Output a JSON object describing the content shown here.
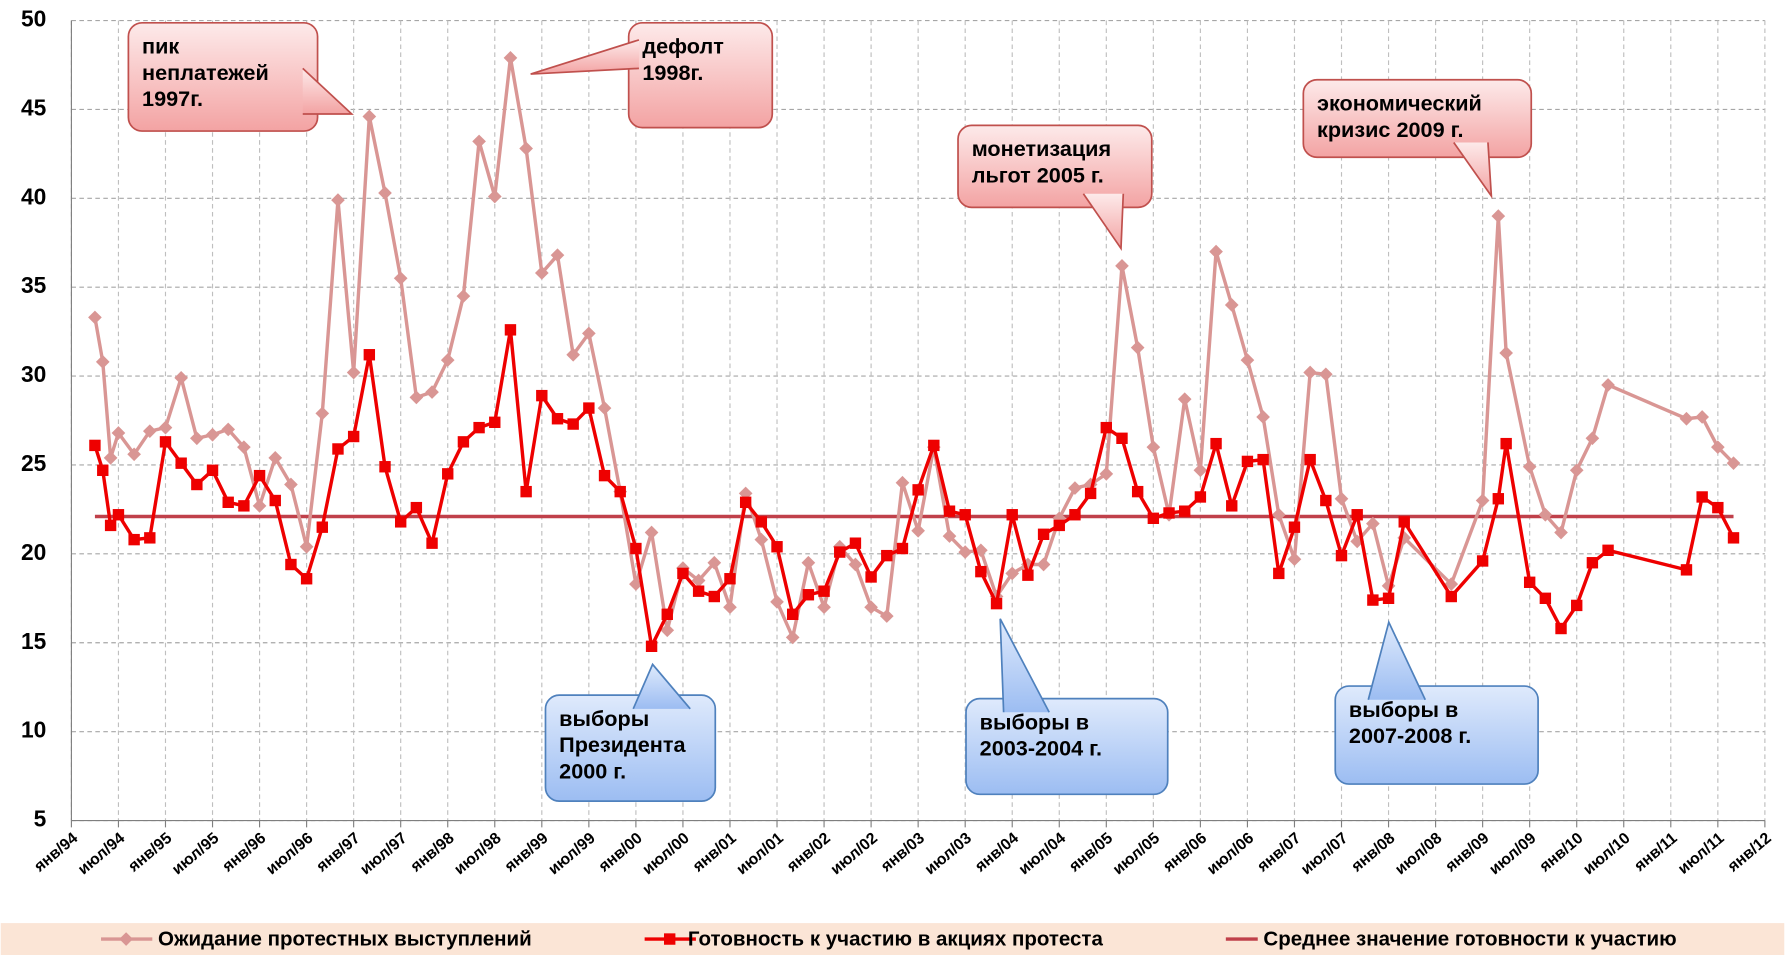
{
  "chart_data": {
    "type": "line",
    "xlim": [
      "1994-01",
      "2012-01"
    ],
    "ylim": [
      5,
      50
    ],
    "yticks": [
      5,
      10,
      15,
      20,
      25,
      30,
      35,
      40,
      45,
      50
    ],
    "xticks": [
      {
        "value": "1994-01",
        "label": "янв/94"
      },
      {
        "value": "1994-07",
        "label": "июл/94"
      },
      {
        "value": "1995-01",
        "label": "янв/95"
      },
      {
        "value": "1995-07",
        "label": "июл/95"
      },
      {
        "value": "1996-01",
        "label": "янв/96"
      },
      {
        "value": "1996-07",
        "label": "июл/96"
      },
      {
        "value": "1997-01",
        "label": "янв/97"
      },
      {
        "value": "1997-07",
        "label": "июл/97"
      },
      {
        "value": "1998-01",
        "label": "янв/98"
      },
      {
        "value": "1998-07",
        "label": "июл/98"
      },
      {
        "value": "1999-01",
        "label": "янв/99"
      },
      {
        "value": "1999-07",
        "label": "июл/99"
      },
      {
        "value": "2000-01",
        "label": "янв/00"
      },
      {
        "value": "2000-07",
        "label": "июл/00"
      },
      {
        "value": "2001-01",
        "label": "янв/01"
      },
      {
        "value": "2001-07",
        "label": "июл/01"
      },
      {
        "value": "2002-01",
        "label": "янв/02"
      },
      {
        "value": "2002-07",
        "label": "июл/02"
      },
      {
        "value": "2003-01",
        "label": "янв/03"
      },
      {
        "value": "2003-07",
        "label": "июл/03"
      },
      {
        "value": "2004-01",
        "label": "янв/04"
      },
      {
        "value": "2004-07",
        "label": "июл/04"
      },
      {
        "value": "2005-01",
        "label": "янв/05"
      },
      {
        "value": "2005-07",
        "label": "июл/05"
      },
      {
        "value": "2006-01",
        "label": "янв/06"
      },
      {
        "value": "2006-07",
        "label": "июл/06"
      },
      {
        "value": "2007-01",
        "label": "янв/07"
      },
      {
        "value": "2007-07",
        "label": "июл/07"
      },
      {
        "value": "2008-01",
        "label": "янв/08"
      },
      {
        "value": "2008-07",
        "label": "июл/08"
      },
      {
        "value": "2009-01",
        "label": "янв/09"
      },
      {
        "value": "2009-07",
        "label": "июл/09"
      },
      {
        "value": "2010-01",
        "label": "янв/10"
      },
      {
        "value": "2010-07",
        "label": "июл/10"
      },
      {
        "value": "2011-01",
        "label": "янв/11"
      },
      {
        "value": "2011-07",
        "label": "июл/11"
      },
      {
        "value": "2012-01",
        "label": "янв/12"
      }
    ],
    "grid": true,
    "x": [
      "1994-04",
      "1994-05",
      "1994-06",
      "1994-07",
      "1994-09",
      "1994-11",
      "1995-01",
      "1995-03",
      "1995-05",
      "1995-07",
      "1995-09",
      "1995-11",
      "1996-01",
      "1996-03",
      "1996-05",
      "1996-07",
      "1996-09",
      "1996-11",
      "1997-01",
      "1997-03",
      "1997-05",
      "1997-07",
      "1997-09",
      "1997-11",
      "1998-01",
      "1998-03",
      "1998-05",
      "1998-07",
      "1998-09",
      "1998-11",
      "1999-01",
      "1999-03",
      "1999-05",
      "1999-07",
      "1999-09",
      "1999-11",
      "2000-01",
      "2000-03",
      "2000-05",
      "2000-07",
      "2000-09",
      "2000-11",
      "2001-01",
      "2001-03",
      "2001-05",
      "2001-07",
      "2001-09",
      "2001-11",
      "2002-01",
      "2002-03",
      "2002-05",
      "2002-07",
      "2002-09",
      "2002-11",
      "2003-01",
      "2003-03",
      "2003-05",
      "2003-07",
      "2003-09",
      "2003-11",
      "2004-01",
      "2004-03",
      "2004-05",
      "2004-07",
      "2004-09",
      "2004-11",
      "2005-01",
      "2005-03",
      "2005-05",
      "2005-07",
      "2005-09",
      "2005-11",
      "2006-01",
      "2006-03",
      "2006-05",
      "2006-07",
      "2006-09",
      "2006-11",
      "2007-01",
      "2007-03",
      "2007-05",
      "2007-07",
      "2007-09",
      "2007-11",
      "2008-01",
      "2008-03",
      "2008-09",
      "2009-01",
      "2009-03",
      "2009-04",
      "2009-07",
      "2009-09",
      "2009-11",
      "2010-01",
      "2010-03",
      "2010-05",
      "2011-03",
      "2011-05",
      "2011-07",
      "2011-09"
    ],
    "series": [
      {
        "name": "Ожидание протестных выступлений",
        "color": "#d99694",
        "marker": "diamond",
        "values": [
          33.3,
          30.8,
          25.4,
          26.8,
          25.6,
          26.9,
          27.1,
          29.9,
          26.5,
          26.7,
          27.0,
          26.0,
          22.7,
          25.4,
          23.9,
          20.4,
          27.9,
          39.9,
          30.2,
          44.6,
          40.3,
          35.5,
          28.8,
          29.1,
          30.9,
          34.5,
          43.2,
          40.1,
          47.9,
          42.8,
          35.8,
          36.8,
          31.2,
          32.4,
          28.2,
          23.5,
          18.3,
          21.2,
          15.7,
          19.2,
          18.5,
          19.5,
          17.0,
          23.4,
          20.8,
          17.3,
          15.3,
          19.5,
          17.0,
          20.4,
          19.4,
          17.0,
          16.5,
          24.0,
          21.3,
          26.0,
          21.0,
          20.1,
          20.2,
          17.6,
          18.9,
          19.4,
          19.4,
          22.0,
          23.7,
          23.9,
          24.5,
          36.2,
          31.6,
          26.0,
          22.2,
          28.7,
          24.7,
          37.0,
          34.0,
          30.9,
          27.7,
          22.2,
          19.7,
          30.2,
          30.1,
          23.1,
          20.7,
          21.7,
          18.2,
          20.9,
          18.3,
          23.0,
          39.0,
          31.3,
          24.9,
          22.2,
          21.2,
          24.7,
          26.5,
          29.5,
          27.6,
          27.7,
          26.0,
          25.1
        ]
      },
      {
        "name": "Готовность к участию в акциях протеста",
        "color": "#ee0000",
        "marker": "square",
        "values": [
          26.1,
          24.7,
          21.6,
          22.2,
          20.8,
          20.9,
          26.3,
          25.1,
          23.9,
          24.7,
          22.9,
          22.7,
          24.4,
          23.0,
          19.4,
          18.6,
          21.5,
          25.9,
          26.6,
          31.2,
          24.9,
          21.8,
          22.6,
          20.6,
          24.5,
          26.3,
          27.1,
          27.4,
          32.6,
          23.5,
          28.9,
          27.6,
          27.3,
          28.2,
          24.4,
          23.5,
          20.3,
          14.8,
          16.6,
          18.9,
          17.9,
          17.6,
          18.6,
          22.9,
          21.8,
          20.4,
          16.6,
          17.7,
          17.9,
          20.1,
          20.6,
          18.7,
          19.9,
          20.3,
          23.6,
          26.1,
          22.4,
          22.2,
          19.0,
          17.2,
          22.2,
          18.8,
          21.1,
          21.6,
          22.2,
          23.4,
          27.1,
          26.5,
          23.5,
          22.0,
          22.3,
          22.4,
          23.2,
          26.2,
          22.7,
          25.2,
          25.3,
          18.9,
          21.5,
          25.3,
          23.0,
          19.9,
          22.2,
          17.4,
          17.5,
          21.8,
          17.6,
          19.6,
          23.1,
          26.2,
          18.4,
          17.5,
          15.8,
          17.1,
          19.5,
          20.2,
          19.1,
          23.2,
          22.6,
          20.9
        ]
      }
    ],
    "mean": {
      "name": "Среднее значение готовности к участию",
      "color": "#c0404a",
      "value": 22.1
    },
    "annotations": [
      {
        "lines": [
          "пик",
          "неплатежей",
          "1997г."
        ],
        "style": "pink"
      },
      {
        "lines": [
          "дефолт",
          "1998г."
        ],
        "style": "pink"
      },
      {
        "lines": [
          "монетизация",
          "льгот 2005 г."
        ],
        "style": "pink"
      },
      {
        "lines": [
          "экономический",
          "кризис 2009 г."
        ],
        "style": "pink"
      },
      {
        "lines": [
          "выборы",
          "Президента",
          "2000 г."
        ],
        "style": "blue"
      },
      {
        "lines": [
          "выборы в",
          "2003-2004 г."
        ],
        "style": "blue"
      },
      {
        "lines": [
          "выборы в",
          "2007-2008 г."
        ],
        "style": "blue"
      }
    ]
  }
}
